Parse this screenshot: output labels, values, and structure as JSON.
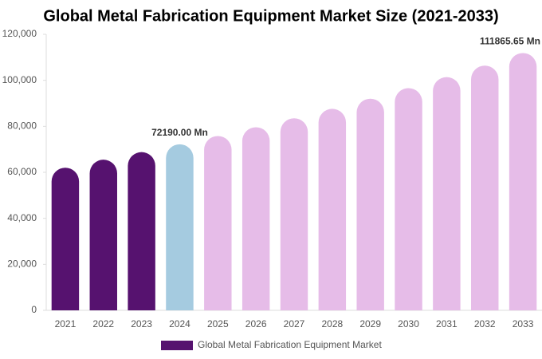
{
  "chart_data": {
    "type": "bar",
    "title": "Global Metal Fabrication Equipment Market Size (2021-2033)",
    "categories": [
      "2021",
      "2022",
      "2023",
      "2024",
      "2025",
      "2026",
      "2027",
      "2028",
      "2029",
      "2030",
      "2031",
      "2032",
      "2033"
    ],
    "series": [
      {
        "name": "Global Metal Fabrication Equipment Market",
        "color": "#56126f",
        "values": [
          62000,
          65500,
          68800,
          72190,
          75800,
          79600,
          83500,
          87600,
          92000,
          96600,
          101400,
          106400,
          111865.65
        ],
        "colors": [
          "#56126f",
          "#56126f",
          "#56126f",
          "#a5cbe0",
          "#e6bce8",
          "#e6bce8",
          "#e6bce8",
          "#e6bce8",
          "#e6bce8",
          "#e6bce8",
          "#e6bce8",
          "#e6bce8",
          "#e6bce8"
        ],
        "value_labels": [
          null,
          null,
          null,
          "72190.00 Mn",
          null,
          null,
          null,
          null,
          null,
          null,
          null,
          null,
          "111865.65 Mn"
        ]
      }
    ],
    "ylim": [
      0,
      120000
    ],
    "yticks": [
      0,
      {
        "value": 20000,
        "label": "20,000"
      },
      {
        "value": 40000,
        "label": "40,000"
      },
      {
        "value": 60000,
        "label": "60,000"
      },
      {
        "value": 80000,
        "label": "80,000"
      },
      {
        "value": 100000,
        "label": "100,000"
      },
      {
        "value": 120000,
        "label": "120,000"
      }
    ],
    "grid": false,
    "legend": "bottom"
  }
}
